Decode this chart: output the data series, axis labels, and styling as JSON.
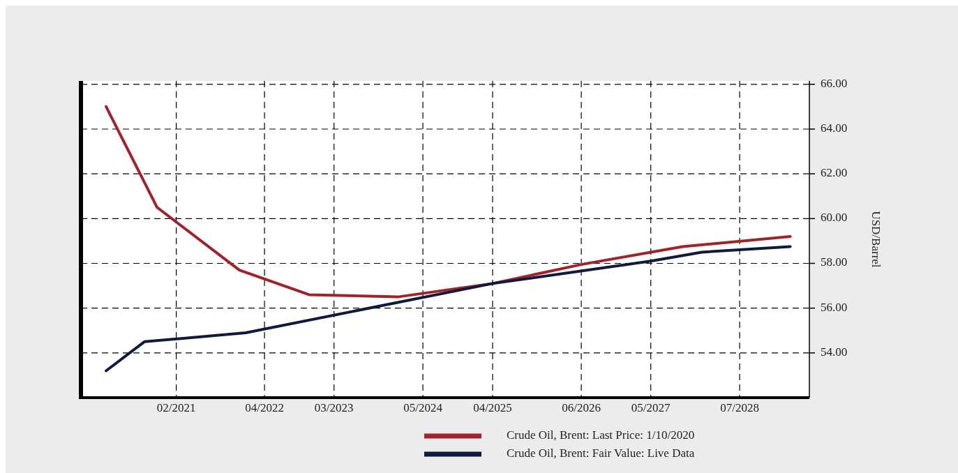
{
  "chart_data": {
    "type": "line",
    "ylabel": "USD/Barrel",
    "x": [
      "2020-03",
      "2020-11",
      "2021-12",
      "2022-11",
      "2024-01",
      "2025-04",
      "2026-06",
      "2027-10",
      "2029-03"
    ],
    "series": [
      {
        "name": "Crude Oil, Brent: Last Price: 1/10/2020",
        "color": "#a0222a",
        "values": [
          65.0,
          60.5,
          57.7,
          56.6,
          56.5,
          57.1,
          57.95,
          58.75,
          59.2
        ]
      },
      {
        "name": "Crude Oil, Brent: Fair Value: Live Data",
        "color": "#0f1a3d",
        "x": [
          "2020-03",
          "2020-09",
          "2022-01",
          "2025-04",
          "2027-05",
          "2028-01",
          "2029-03"
        ],
        "values": [
          53.2,
          54.5,
          54.9,
          57.1,
          58.1,
          58.5,
          58.75
        ]
      }
    ],
    "xlim": [
      "2019-11",
      "2029-06"
    ],
    "ylim": [
      52,
      66.15
    ],
    "xticks": [
      {
        "value": "2021-02",
        "label": "02/2021"
      },
      {
        "value": "2022-04",
        "label": "04/2022"
      },
      {
        "value": "2023-03",
        "label": "03/2023"
      },
      {
        "value": "2024-05",
        "label": "05/2024"
      },
      {
        "value": "2025-04",
        "label": "04/2025"
      },
      {
        "value": "2026-06",
        "label": "06/2026"
      },
      {
        "value": "2027-05",
        "label": "05/2027"
      },
      {
        "value": "2028-07",
        "label": "07/2028"
      }
    ],
    "yticks": [
      {
        "value": 54,
        "label": "54.00"
      },
      {
        "value": 56,
        "label": "56.00"
      },
      {
        "value": 58,
        "label": "58.00"
      },
      {
        "value": 60,
        "label": "60.00"
      },
      {
        "value": 62,
        "label": "62.00"
      },
      {
        "value": 64,
        "label": "64.00"
      },
      {
        "value": 66,
        "label": "66.00"
      }
    ],
    "grid": true,
    "legend": "bottom",
    "line_style": "solid",
    "marker": "none"
  }
}
